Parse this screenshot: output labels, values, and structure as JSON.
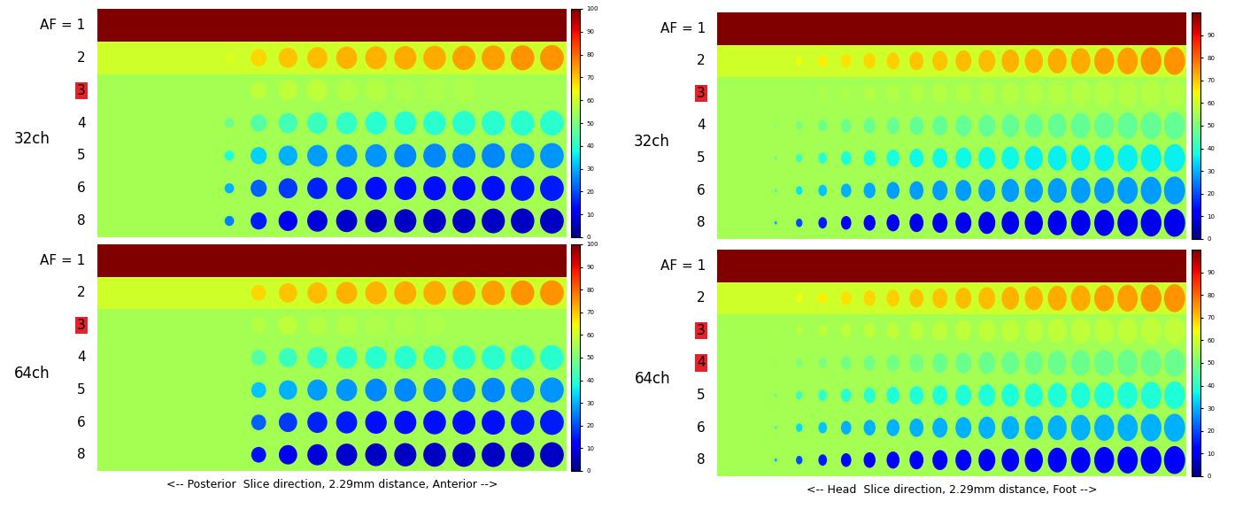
{
  "chart_data": [
    {
      "type": "heatmap",
      "channel_label": "32ch",
      "row_labels": [
        "AF = 1",
        "2",
        "3",
        "4",
        "5",
        "6",
        "8"
      ],
      "marked_rows": [
        "3"
      ],
      "row_background": [
        100,
        60,
        55,
        55,
        55,
        55,
        55
      ],
      "slice_sizes": [
        null,
        null,
        null,
        null,
        0.35,
        0.6,
        0.7,
        0.75,
        0.78,
        0.8,
        0.82,
        0.84,
        0.85,
        0.86,
        0.87,
        0.88
      ],
      "cells": [
        [
          null,
          null,
          null,
          null,
          null,
          null,
          null,
          null,
          null,
          null,
          null,
          null,
          null,
          null,
          null,
          null
        ],
        [
          null,
          null,
          null,
          null,
          62,
          68,
          70,
          71,
          72,
          72,
          73,
          73,
          74,
          74,
          75,
          75
        ],
        [
          null,
          null,
          null,
          null,
          55,
          58,
          58,
          58,
          57,
          57,
          56,
          56,
          56,
          55,
          55,
          55
        ],
        [
          null,
          null,
          null,
          null,
          48,
          45,
          43,
          42,
          41,
          40,
          40,
          40,
          40,
          40,
          40,
          40
        ],
        [
          null,
          null,
          null,
          null,
          38,
          33,
          30,
          28,
          27,
          27,
          26,
          26,
          26,
          26,
          27,
          27
        ],
        [
          null,
          null,
          null,
          null,
          30,
          22,
          18,
          16,
          15,
          14,
          14,
          14,
          14,
          14,
          15,
          15
        ],
        [
          null,
          null,
          null,
          null,
          25,
          15,
          10,
          8,
          7,
          6,
          6,
          6,
          6,
          6,
          6,
          6
        ]
      ],
      "colorbar_range": [
        0,
        100
      ],
      "colorbar_ticks": [
        0,
        10,
        20,
        30,
        40,
        50,
        60,
        70,
        80,
        90,
        100
      ]
    },
    {
      "type": "heatmap",
      "channel_label": "64ch",
      "row_labels": [
        "AF = 1",
        "2",
        "3",
        "4",
        "5",
        "6",
        "8"
      ],
      "marked_rows": [
        "3"
      ],
      "row_background": [
        100,
        60,
        55,
        55,
        55,
        55,
        55
      ],
      "slice_sizes": [
        null,
        null,
        null,
        null,
        null,
        0.55,
        0.68,
        0.74,
        0.78,
        0.8,
        0.82,
        0.84,
        0.85,
        0.86,
        0.87,
        0.88
      ],
      "cells": [
        [
          null,
          null,
          null,
          null,
          null,
          null,
          null,
          null,
          null,
          null,
          null,
          null,
          null,
          null,
          null,
          null
        ],
        [
          null,
          null,
          null,
          null,
          null,
          68,
          70,
          71,
          72,
          72,
          73,
          73,
          74,
          74,
          75,
          75
        ],
        [
          null,
          null,
          null,
          null,
          null,
          57,
          58,
          57,
          57,
          56,
          56,
          56,
          55,
          55,
          55,
          55
        ],
        [
          null,
          null,
          null,
          null,
          null,
          45,
          42,
          41,
          40,
          40,
          40,
          40,
          40,
          40,
          40,
          40
        ],
        [
          null,
          null,
          null,
          null,
          null,
          32,
          30,
          28,
          27,
          26,
          26,
          26,
          26,
          26,
          27,
          27
        ],
        [
          null,
          null,
          null,
          null,
          null,
          22,
          18,
          16,
          15,
          14,
          14,
          14,
          14,
          14,
          15,
          15
        ],
        [
          null,
          null,
          null,
          null,
          null,
          14,
          10,
          8,
          7,
          6,
          6,
          6,
          6,
          6,
          6,
          6
        ]
      ],
      "xlabel": "<-- Posterior  Slice direction, 2.29mm distance, Anterior -->",
      "colorbar_range": [
        0,
        100
      ],
      "colorbar_ticks": [
        0,
        10,
        20,
        30,
        40,
        50,
        60,
        70,
        80,
        90,
        100
      ]
    },
    {
      "type": "heatmap",
      "channel_label": "32ch",
      "row_labels": [
        "AF = 1",
        "2",
        "3",
        "4",
        "5",
        "6",
        "8"
      ],
      "marked_rows": [
        "3"
      ],
      "row_background": [
        100,
        60,
        55,
        55,
        55,
        55,
        55
      ],
      "slice_sizes": [
        null,
        null,
        0.12,
        0.3,
        0.4,
        0.48,
        0.55,
        0.6,
        0.65,
        0.7,
        0.74,
        0.78,
        0.81,
        0.84,
        0.87,
        0.9,
        0.92,
        0.94,
        0.96,
        0.98
      ],
      "cells": [
        [
          null,
          null,
          null,
          null,
          null,
          null,
          null,
          null,
          null,
          null,
          null,
          null,
          null,
          null,
          null,
          null,
          null,
          null,
          null,
          null
        ],
        [
          null,
          null,
          62,
          64,
          66,
          67,
          68,
          69,
          70,
          70,
          71,
          71,
          72,
          72,
          73,
          73,
          74,
          74,
          75,
          75
        ],
        [
          null,
          null,
          55,
          55,
          56,
          56,
          57,
          57,
          57,
          57,
          57,
          57,
          57,
          57,
          57,
          57,
          57,
          57,
          57,
          57
        ],
        [
          null,
          null,
          50,
          49,
          48,
          48,
          48,
          48,
          47,
          47,
          47,
          47,
          47,
          47,
          47,
          47,
          47,
          47,
          47,
          47
        ],
        [
          null,
          null,
          45,
          42,
          40,
          39,
          38,
          38,
          37,
          37,
          37,
          37,
          37,
          36,
          36,
          36,
          36,
          36,
          36,
          36
        ],
        [
          null,
          null,
          40,
          35,
          32,
          30,
          29,
          28,
          28,
          28,
          28,
          28,
          28,
          28,
          28,
          28,
          28,
          28,
          28,
          28
        ],
        [
          null,
          null,
          30,
          20,
          15,
          12,
          11,
          10,
          10,
          10,
          10,
          10,
          10,
          10,
          10,
          10,
          10,
          10,
          10,
          10
        ]
      ],
      "colorbar_range": [
        0,
        100
      ],
      "colorbar_ticks": [
        0,
        10,
        20,
        30,
        40,
        50,
        60,
        70,
        80,
        90
      ]
    },
    {
      "type": "heatmap",
      "channel_label": "64ch",
      "row_labels": [
        "AF = 1",
        "2",
        "3",
        "4",
        "5",
        "6",
        "8"
      ],
      "marked_rows": [
        "3",
        "4"
      ],
      "row_background": [
        100,
        60,
        55,
        55,
        55,
        55,
        55
      ],
      "slice_sizes": [
        null,
        null,
        0.12,
        0.3,
        0.4,
        0.48,
        0.55,
        0.6,
        0.65,
        0.7,
        0.74,
        0.78,
        0.81,
        0.84,
        0.87,
        0.9,
        0.92,
        0.94,
        0.96,
        0.98
      ],
      "cells": [
        [
          null,
          null,
          null,
          null,
          null,
          null,
          null,
          null,
          null,
          null,
          null,
          null,
          null,
          null,
          null,
          null,
          null,
          null,
          null,
          null
        ],
        [
          null,
          null,
          62,
          64,
          66,
          67,
          68,
          69,
          70,
          70,
          71,
          71,
          72,
          72,
          73,
          73,
          74,
          74,
          75,
          75
        ],
        [
          null,
          null,
          58,
          58,
          58,
          58,
          58,
          58,
          58,
          58,
          58,
          58,
          58,
          58,
          58,
          58,
          58,
          58,
          58,
          58
        ],
        [
          null,
          null,
          52,
          50,
          50,
          49,
          49,
          49,
          49,
          48,
          48,
          48,
          48,
          48,
          48,
          48,
          48,
          48,
          48,
          48
        ],
        [
          null,
          null,
          45,
          42,
          41,
          40,
          40,
          39,
          39,
          39,
          39,
          39,
          39,
          39,
          39,
          39,
          39,
          39,
          39,
          39
        ],
        [
          null,
          null,
          40,
          34,
          32,
          30,
          30,
          30,
          30,
          30,
          30,
          30,
          30,
          30,
          30,
          30,
          30,
          30,
          30,
          30
        ],
        [
          null,
          null,
          30,
          20,
          15,
          13,
          12,
          12,
          12,
          12,
          12,
          12,
          12,
          12,
          12,
          12,
          12,
          12,
          12,
          12
        ]
      ],
      "xlabel": "<-- Head  Slice direction, 2.29mm distance, Foot -->",
      "colorbar_range": [
        0,
        100
      ],
      "colorbar_ticks": [
        0,
        10,
        20,
        30,
        40,
        50,
        60,
        70,
        80,
        90
      ]
    }
  ]
}
